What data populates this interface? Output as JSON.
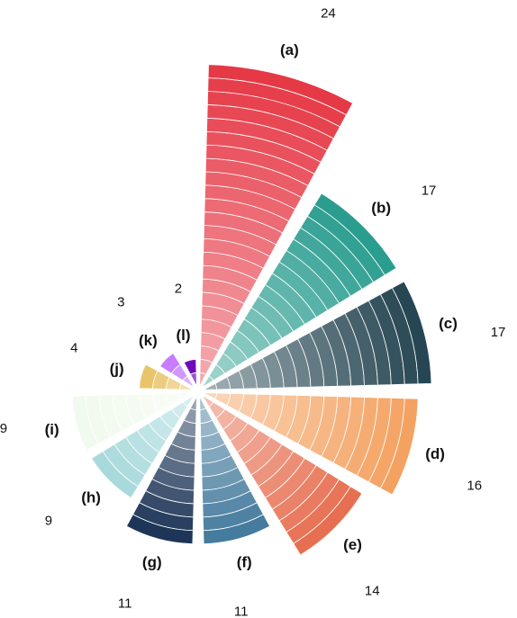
{
  "chart_data": {
    "type": "polar-bar",
    "categories": [
      "(a)",
      "(b)",
      "(c)",
      "(d)",
      "(e)",
      "(f)",
      "(g)",
      "(h)",
      "(i)",
      "(j)",
      "(k)",
      "(l)"
    ],
    "values": [
      24,
      17,
      17,
      16,
      14,
      11,
      11,
      9,
      9,
      4,
      3,
      2
    ],
    "colors": [
      "#e63946",
      "#2a9d8f",
      "#264653",
      "#f4a261",
      "#e76f51",
      "#457b9d",
      "#1d3557",
      "#a8dadc",
      "#f1faee",
      "#e9c46a",
      "#c77dff",
      "#7209b7"
    ]
  }
}
